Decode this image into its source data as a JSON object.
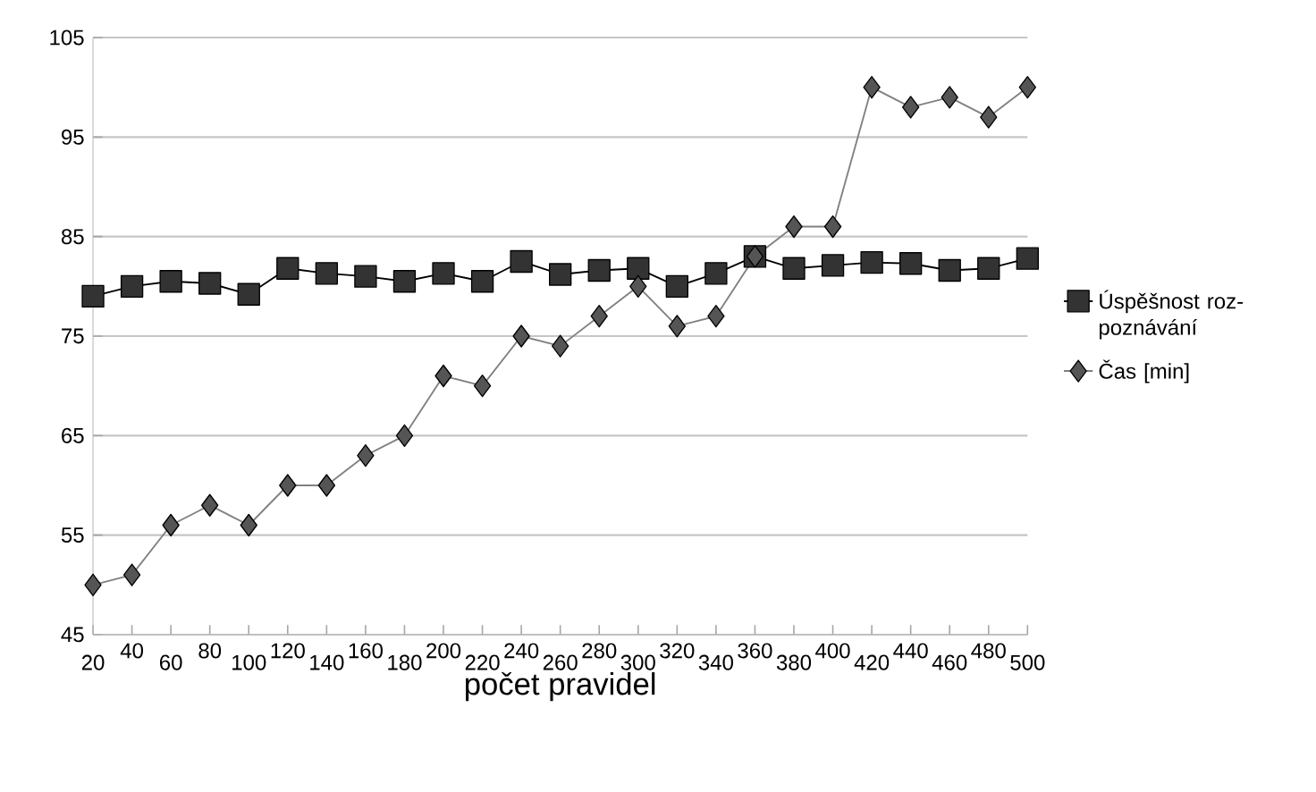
{
  "chart_data": {
    "type": "line",
    "xlabel": "počet pravidel",
    "categories": [
      "20",
      "40",
      "60",
      "80",
      "100",
      "120",
      "140",
      "160",
      "180",
      "200",
      "220",
      "240",
      "260",
      "280",
      "300",
      "320",
      "340",
      "360",
      "380",
      "400",
      "420",
      "440",
      "460",
      "480",
      "500"
    ],
    "series": [
      {
        "name": "Úspěšnost roz-poznávání",
        "color": "#333333",
        "marker": "square",
        "values": [
          79,
          80,
          80.5,
          80.3,
          79.2,
          81.8,
          81.3,
          81,
          80.5,
          81.3,
          80.5,
          82.5,
          81.2,
          81.6,
          81.8,
          80,
          81.3,
          83,
          81.8,
          82.1,
          82.4,
          82.3,
          81.6,
          81.8,
          82.8
        ]
      },
      {
        "name": "Čas [min]",
        "color": "#555555",
        "marker": "diamond",
        "values": [
          50,
          51,
          56,
          58,
          56,
          60,
          60,
          63,
          65,
          71,
          70,
          75,
          74,
          77,
          80,
          76,
          77,
          83,
          86,
          86,
          100,
          98,
          99,
          97,
          100
        ]
      }
    ],
    "ylim": [
      45,
      105
    ],
    "yticks": [
      45,
      55,
      65,
      75,
      85,
      95,
      105
    ],
    "grid": "y",
    "legend": "right"
  }
}
